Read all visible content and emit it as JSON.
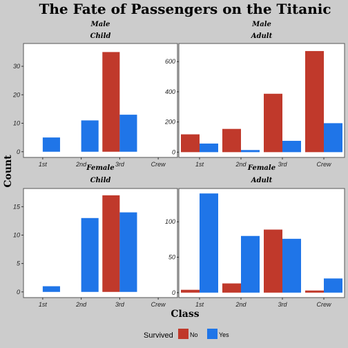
{
  "chart_data": {
    "type": "bar",
    "title": "The Fate of Passengers on the Titanic",
    "xlabel": "Class",
    "ylabel": "Count",
    "categories": [
      "1st",
      "2nd",
      "3rd",
      "Crew"
    ],
    "legend": {
      "title": "Survived",
      "placement": "bottom",
      "entries": [
        {
          "label": "No",
          "color": "#c0392b"
        },
        {
          "label": "Yes",
          "color": "#1f75e8"
        }
      ]
    },
    "grid": false,
    "panels": [
      {
        "strip_top": "Male",
        "strip_bottom": "Child",
        "ylim": [
          -2,
          38
        ],
        "yticks": [
          0,
          10,
          20,
          30
        ],
        "series": [
          {
            "name": "No",
            "values": [
              0,
              0,
              35,
              0
            ]
          },
          {
            "name": "Yes",
            "values": [
              5,
              11,
              13,
              0
            ]
          }
        ]
      },
      {
        "strip_top": "Male",
        "strip_bottom": "Adult",
        "ylim": [
          -35,
          720
        ],
        "yticks": [
          0,
          200,
          400,
          600
        ],
        "series": [
          {
            "name": "No",
            "values": [
              118,
              154,
              387,
              670
            ]
          },
          {
            "name": "Yes",
            "values": [
              57,
              14,
              75,
              192
            ]
          }
        ]
      },
      {
        "strip_top": "Female",
        "strip_bottom": "Child",
        "ylim": [
          -1,
          18.2
        ],
        "yticks": [
          0,
          5,
          10,
          15
        ],
        "series": [
          {
            "name": "No",
            "values": [
              0,
              0,
              17,
              0
            ]
          },
          {
            "name": "Yes",
            "values": [
              1,
              13,
              14,
              0
            ]
          }
        ]
      },
      {
        "strip_top": "Female",
        "strip_bottom": "Adult",
        "ylim": [
          -7,
          147
        ],
        "yticks": [
          0,
          50,
          100
        ],
        "series": [
          {
            "name": "No",
            "values": [
              4,
              13,
              89,
              3
            ]
          },
          {
            "name": "Yes",
            "values": [
              140,
              80,
              76,
              20
            ]
          }
        ]
      }
    ]
  }
}
